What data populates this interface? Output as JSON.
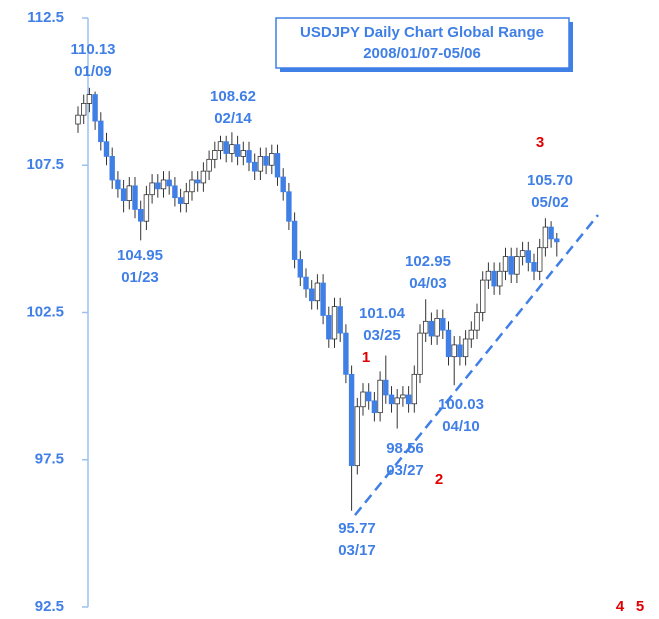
{
  "chart_data": {
    "type": "candlestick",
    "title": "USDJPY Daily Chart Global Range",
    "subtitle": "2008/01/07-05/06",
    "ylim": [
      92.5,
      112.5
    ],
    "yticks": [
      92.5,
      97.5,
      102.5,
      107.5,
      112.5
    ],
    "up_color": "#ffffff",
    "down_color": "#3f7fe6",
    "series": {
      "open": [
        108.9,
        109.2,
        109.6,
        109.9,
        109.0,
        108.3,
        107.8,
        107.0,
        106.7,
        106.3,
        106.8,
        106.0,
        105.6,
        106.5,
        106.9,
        106.7,
        107.0,
        106.8,
        106.4,
        106.2,
        106.6,
        107.0,
        106.9,
        107.3,
        107.7,
        108.0,
        108.3,
        107.9,
        108.2,
        107.8,
        108.0,
        107.6,
        107.3,
        107.8,
        107.5,
        107.9,
        107.1,
        106.6,
        105.6,
        104.3,
        103.7,
        103.3,
        102.9,
        103.5,
        102.4,
        101.6,
        102.7,
        101.8,
        100.4,
        97.3,
        99.3,
        99.8,
        99.5,
        99.1,
        100.2,
        99.7,
        99.4,
        99.6,
        99.7,
        99.4,
        100.4,
        101.8,
        102.2,
        101.7,
        102.3,
        101.9,
        101.0,
        101.4,
        101.0,
        101.6,
        101.9,
        102.5,
        103.6,
        103.9,
        103.4,
        103.9,
        104.4,
        103.8,
        104.4,
        104.6,
        104.2,
        103.9,
        104.7,
        105.4,
        105.0
      ],
      "high": [
        109.5,
        109.9,
        110.13,
        110.0,
        109.3,
        108.6,
        108.1,
        107.3,
        107.0,
        107.1,
        107.1,
        106.3,
        106.8,
        107.2,
        107.2,
        107.3,
        107.3,
        107.1,
        106.7,
        106.9,
        107.3,
        107.3,
        107.6,
        108.0,
        108.3,
        108.5,
        108.5,
        108.62,
        108.5,
        108.3,
        108.3,
        107.9,
        108.1,
        108.1,
        108.2,
        108.2,
        107.4,
        106.9,
        105.9,
        104.6,
        104.0,
        103.6,
        103.8,
        103.8,
        102.7,
        103.0,
        103.0,
        102.1,
        100.7,
        99.6,
        100.1,
        100.1,
        99.8,
        100.5,
        101.04,
        100.0,
        99.9,
        100.0,
        100.0,
        100.7,
        102.1,
        102.95,
        102.5,
        102.6,
        102.6,
        102.2,
        101.7,
        101.7,
        101.9,
        102.2,
        102.8,
        103.9,
        104.2,
        104.2,
        104.2,
        104.7,
        104.7,
        104.7,
        104.9,
        104.9,
        104.5,
        105.0,
        105.7,
        105.6,
        105.2
      ],
      "low": [
        108.6,
        108.9,
        109.3,
        108.7,
        108.0,
        107.5,
        106.7,
        106.4,
        105.9,
        106.0,
        105.7,
        104.95,
        105.3,
        106.2,
        106.4,
        106.4,
        106.5,
        106.1,
        105.9,
        105.9,
        106.3,
        106.6,
        106.6,
        107.0,
        107.4,
        107.7,
        107.6,
        107.6,
        107.5,
        107.5,
        107.3,
        107.0,
        107.0,
        107.2,
        107.2,
        106.8,
        106.3,
        105.3,
        104.0,
        103.4,
        103.0,
        102.6,
        102.6,
        102.1,
        101.3,
        101.3,
        101.5,
        100.1,
        95.77,
        97.0,
        99.0,
        99.2,
        98.8,
        98.8,
        99.4,
        99.1,
        98.56,
        99.3,
        99.1,
        99.1,
        100.1,
        101.5,
        101.4,
        101.4,
        101.6,
        100.7,
        100.03,
        100.7,
        100.7,
        101.3,
        101.6,
        102.2,
        103.3,
        103.1,
        103.1,
        103.6,
        103.5,
        103.5,
        104.1,
        103.9,
        103.6,
        103.6,
        104.4,
        104.7,
        104.4
      ],
      "close": [
        109.2,
        109.6,
        109.9,
        109.0,
        108.3,
        107.8,
        107.0,
        106.7,
        106.3,
        106.8,
        106.0,
        105.6,
        106.5,
        106.9,
        106.7,
        107.0,
        106.8,
        106.4,
        106.2,
        106.6,
        107.0,
        106.9,
        107.3,
        107.7,
        108.0,
        108.3,
        107.9,
        108.2,
        107.8,
        108.0,
        107.6,
        107.3,
        107.8,
        107.5,
        107.9,
        107.1,
        106.6,
        105.6,
        104.3,
        103.7,
        103.3,
        102.9,
        103.5,
        102.4,
        101.6,
        102.7,
        101.8,
        100.4,
        97.3,
        99.3,
        99.8,
        99.5,
        99.1,
        100.2,
        99.7,
        99.4,
        99.6,
        99.7,
        99.4,
        100.4,
        101.8,
        102.2,
        101.7,
        102.3,
        101.9,
        101.0,
        101.4,
        101.0,
        101.6,
        101.9,
        102.5,
        103.6,
        103.9,
        103.4,
        103.9,
        104.4,
        103.8,
        104.4,
        104.6,
        104.2,
        103.9,
        104.7,
        105.4,
        105.0,
        104.9
      ]
    },
    "annotations": [
      {
        "price": 110.13,
        "date": "01/09"
      },
      {
        "price": 104.95,
        "date": "01/23"
      },
      {
        "price": 108.62,
        "date": "02/14"
      },
      {
        "price": 95.77,
        "date": "03/17"
      },
      {
        "price": 101.04,
        "date": "03/25"
      },
      {
        "price": 98.56,
        "date": "03/27"
      },
      {
        "price": 102.95,
        "date": "04/03"
      },
      {
        "price": 100.03,
        "date": "04/10"
      },
      {
        "price": 105.7,
        "price_label": "105.70",
        "date": "05/02"
      }
    ],
    "wave_labels": [
      1,
      2,
      3,
      4,
      5
    ],
    "trendline": {
      "start": 95.62,
      "end": 105.81
    }
  }
}
